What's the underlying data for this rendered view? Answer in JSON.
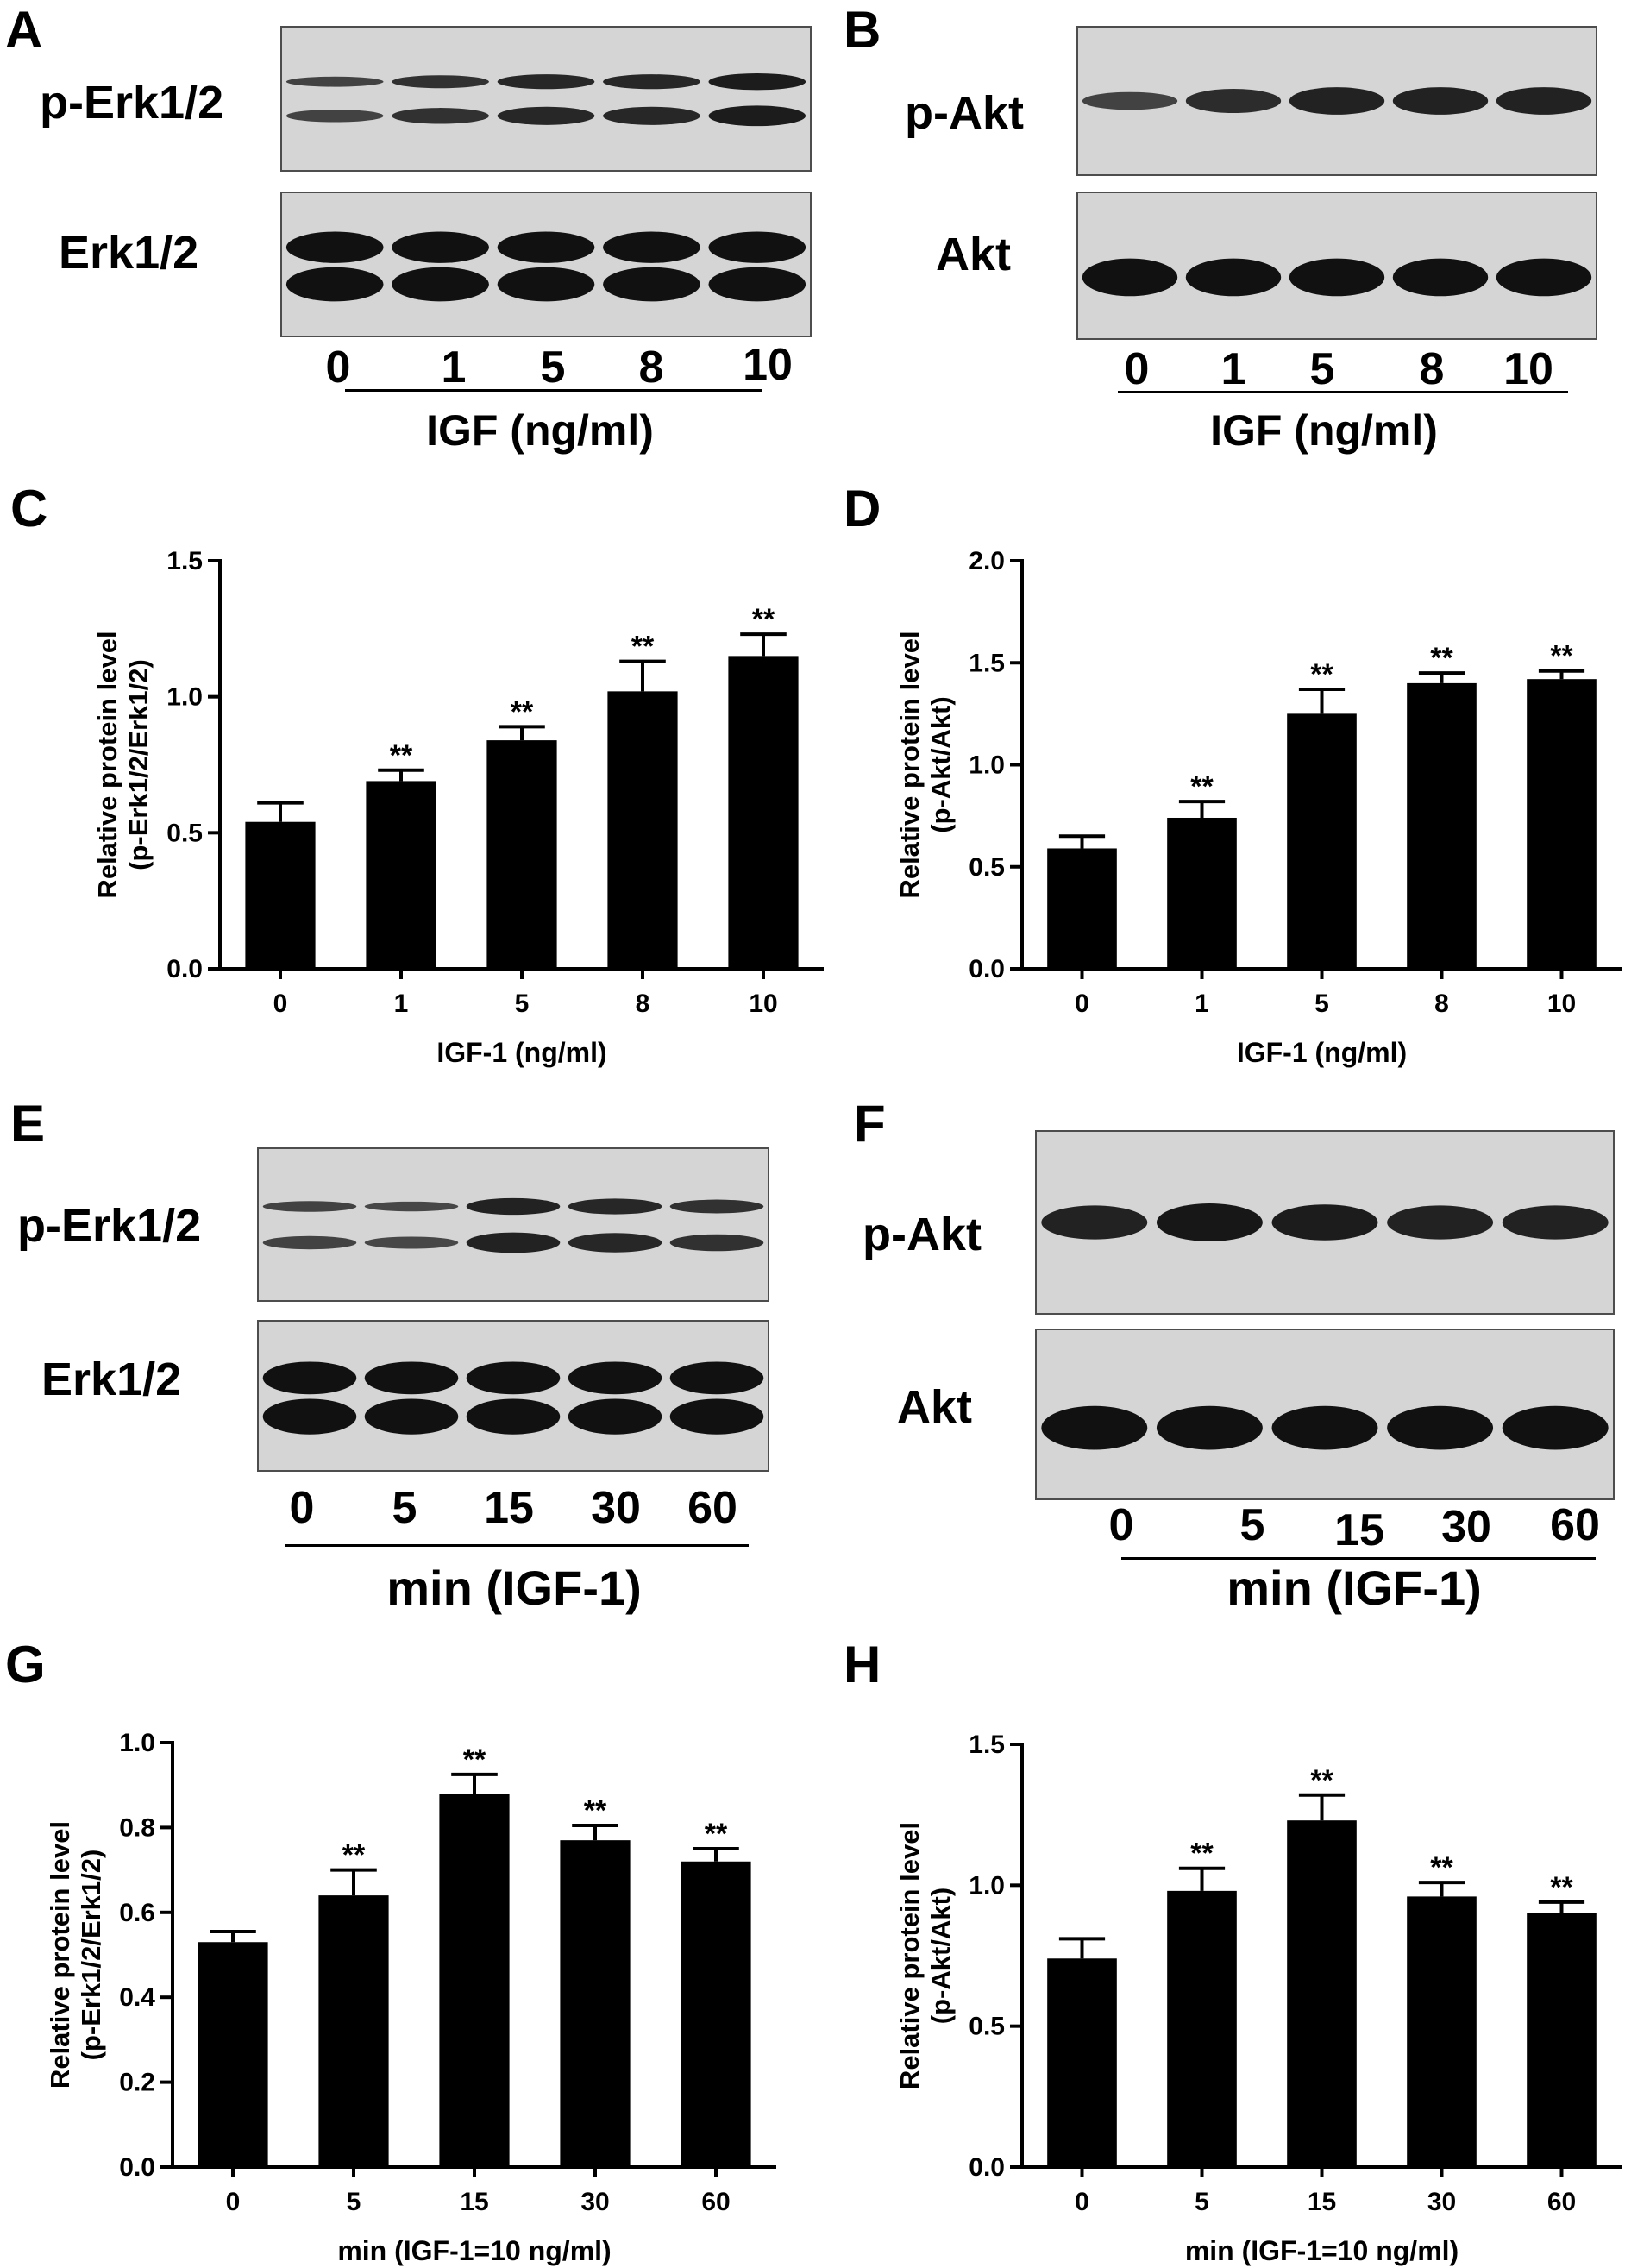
{
  "panels": {
    "A": "A",
    "B": "B",
    "C": "C",
    "D": "D",
    "E": "E",
    "F": "F",
    "G": "G",
    "H": "H"
  },
  "blots": {
    "A": {
      "top_label": "p-Erk1/2",
      "bottom_label": "Erk1/2",
      "lanes": [
        "0",
        "1",
        "5",
        "8",
        "10"
      ],
      "caption": "IGF (ng/ml)"
    },
    "B": {
      "top_label": "p-Akt",
      "bottom_label": "Akt",
      "lanes": [
        "0",
        "1",
        "5",
        "8",
        "10"
      ],
      "caption": "IGF (ng/ml)"
    },
    "E": {
      "top_label": "p-Erk1/2",
      "bottom_label": "Erk1/2",
      "lanes": [
        "0",
        "5",
        "15",
        "30",
        "60"
      ],
      "caption": "min (IGF-1)"
    },
    "F": {
      "top_label": "p-Akt",
      "bottom_label": "Akt",
      "lanes": [
        "0",
        "5",
        "15",
        "30",
        "60"
      ],
      "caption": "min (IGF-1)"
    }
  },
  "significance_mark": "**",
  "chart_data": [
    {
      "panel": "C",
      "type": "bar",
      "categories": [
        "0",
        "1",
        "5",
        "8",
        "10"
      ],
      "values": [
        0.54,
        0.69,
        0.84,
        1.02,
        1.15
      ],
      "errors": [
        0.07,
        0.04,
        0.05,
        0.11,
        0.08
      ],
      "significant": [
        false,
        true,
        true,
        true,
        true
      ],
      "xlabel": "IGF-1  (ng/ml)",
      "ylabel": [
        "Relative protein level",
        "(p-Erk1/2/Erk1/2)"
      ],
      "ylim": [
        0,
        1.5
      ],
      "yticks": [
        0.0,
        0.5,
        1.0,
        1.5
      ],
      "ytick_labels": [
        "0.0",
        "0.5",
        "1.0",
        "1.5"
      ],
      "grid": false
    },
    {
      "panel": "D",
      "type": "bar",
      "categories": [
        "0",
        "1",
        "5",
        "8",
        "10"
      ],
      "values": [
        0.59,
        0.74,
        1.25,
        1.4,
        1.42
      ],
      "errors": [
        0.06,
        0.08,
        0.12,
        0.05,
        0.04
      ],
      "significant": [
        false,
        true,
        true,
        true,
        true
      ],
      "xlabel": "IGF-1  (ng/ml)",
      "ylabel": [
        "Relative protein level",
        "(p-Akt/Akt)"
      ],
      "ylim": [
        0,
        2.0
      ],
      "yticks": [
        0.0,
        0.5,
        1.0,
        1.5,
        2.0
      ],
      "ytick_labels": [
        "0.0",
        "0.5",
        "1.0",
        "1.5",
        "2.0"
      ],
      "grid": false
    },
    {
      "panel": "G",
      "type": "bar",
      "categories": [
        "0",
        "5",
        "15",
        "30",
        "60"
      ],
      "values": [
        0.53,
        0.64,
        0.88,
        0.77,
        0.72
      ],
      "errors": [
        0.025,
        0.06,
        0.045,
        0.035,
        0.03
      ],
      "significant": [
        false,
        true,
        true,
        true,
        true
      ],
      "xlabel": "min  (IGF-1=10 ng/ml)",
      "ylabel": [
        "Relative protein level",
        "(p-Erk1/2/Erk1/2)"
      ],
      "ylim": [
        0,
        1.0
      ],
      "yticks": [
        0.0,
        0.2,
        0.4,
        0.6,
        0.8,
        1.0
      ],
      "ytick_labels": [
        "0.0",
        "0.2",
        "0.4",
        "0.6",
        "0.8",
        "1.0"
      ],
      "grid": false
    },
    {
      "panel": "H",
      "type": "bar",
      "categories": [
        "0",
        "5",
        "15",
        "30",
        "60"
      ],
      "values": [
        0.74,
        0.98,
        1.23,
        0.96,
        0.9
      ],
      "errors": [
        0.07,
        0.08,
        0.09,
        0.05,
        0.04
      ],
      "significant": [
        false,
        true,
        true,
        true,
        true
      ],
      "xlabel": "min  (IGF-1=10 ng/ml)",
      "ylabel": [
        "Relative protein level",
        "(p-Akt/Akt)"
      ],
      "ylim": [
        0,
        1.5
      ],
      "yticks": [
        0.0,
        0.5,
        1.0,
        1.5
      ],
      "ytick_labels": [
        "0.0",
        "0.5",
        "1.0",
        "1.5"
      ],
      "grid": false
    }
  ]
}
